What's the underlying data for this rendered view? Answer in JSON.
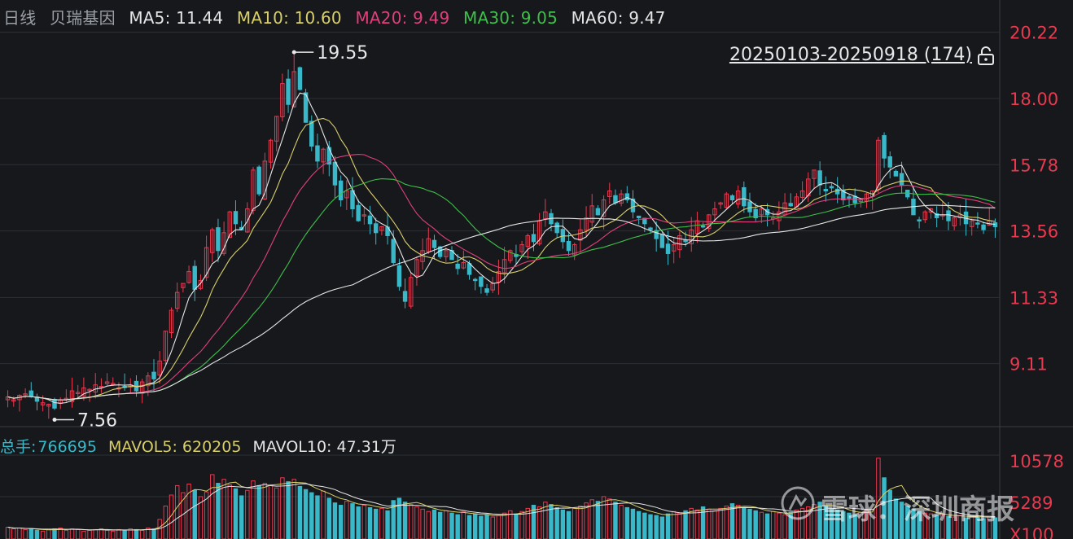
{
  "header": {
    "period": "日线",
    "stock_name": "贝瑞基因",
    "ma": [
      {
        "label": "MA5: 11.44",
        "color": "#e6e6e6"
      },
      {
        "label": "MA10: 10.60",
        "color": "#d8cf6a"
      },
      {
        "label": "MA20: 9.49",
        "color": "#e0407a"
      },
      {
        "label": "MA30: 9.05",
        "color": "#3fbf4a"
      },
      {
        "label": "MA60: 9.47",
        "color": "#e6e6e6"
      }
    ]
  },
  "range_label": "20250103-20250918 (174)",
  "lock_icon": "lock-open-icon",
  "annotations": {
    "high": "19.55",
    "low": "7.56"
  },
  "volume_header": {
    "total_label": "总手:",
    "total_value": "766695",
    "mavol5": "MAVOL5: 620205",
    "mavol10": "MAVOL10: 47.31万"
  },
  "price_axis": [
    "20.22",
    "18.00",
    "15.78",
    "13.56",
    "11.33",
    "9.11"
  ],
  "volume_axis": [
    "10578",
    "5289",
    "X100"
  ],
  "watermark": "雪球：深圳商报",
  "colors": {
    "up": "#e8394f",
    "down": "#38b8c8",
    "bg": "#16181c",
    "grid": "#2c2f36",
    "axis_text": "#e8394f"
  },
  "chart_data": {
    "type": "candlestick",
    "ylim": [
      7.0,
      21.3
    ],
    "count": 174,
    "closes": [
      8.0,
      7.9,
      8.05,
      8.1,
      8.0,
      7.85,
      7.8,
      7.75,
      7.62,
      7.9,
      7.95,
      8.2,
      8.15,
      8.3,
      8.25,
      8.4,
      8.35,
      8.5,
      8.45,
      8.3,
      8.35,
      8.4,
      8.2,
      8.5,
      8.7,
      8.6,
      9.2,
      10.2,
      10.9,
      11.5,
      11.8,
      12.2,
      11.6,
      11.9,
      13.0,
      13.6,
      12.9,
      13.5,
      14.2,
      13.8,
      13.6,
      14.3,
      15.6,
      14.8,
      15.9,
      16.6,
      17.4,
      18.5,
      17.8,
      18.9,
      18.3,
      17.2,
      16.4,
      15.9,
      16.3,
      15.8,
      15.1,
      14.6,
      14.9,
      14.3,
      13.9,
      14.1,
      13.8,
      13.5,
      13.7,
      13.4,
      12.5,
      11.7,
      11.2,
      12.0,
      12.6,
      12.9,
      13.3,
      13.0,
      12.7,
      12.9,
      12.6,
      12.3,
      12.5,
      12.1,
      11.9,
      11.7,
      11.5,
      11.8,
      12.2,
      12.6,
      12.9,
      12.7,
      13.1,
      13.4,
      13.2,
      13.9,
      14.2,
      13.8,
      13.5,
      13.2,
      12.9,
      13.1,
      13.6,
      14.0,
      14.4,
      14.1,
      14.6,
      14.9,
      14.5,
      14.8,
      14.6,
      14.2,
      14.0,
      13.8,
      13.6,
      13.3,
      13.0,
      12.8,
      13.1,
      13.4,
      13.2,
      13.6,
      13.9,
      13.7,
      14.1,
      14.3,
      14.5,
      14.8,
      14.6,
      14.9,
      14.4,
      14.2,
      14.0,
      14.3,
      14.1,
      14.0,
      14.2,
      14.5,
      14.4,
      14.7,
      14.9,
      15.3,
      15.6,
      15.1,
      14.9,
      15.0,
      14.8,
      14.6,
      14.7,
      14.5,
      14.6,
      14.8,
      14.9,
      16.6,
      16.0,
      15.7,
      15.4,
      15.1,
      14.7,
      14.1,
      13.9,
      14.2,
      14.3,
      14.0,
      14.1,
      13.9,
      14.0,
      14.1,
      13.8,
      13.9,
      13.8,
      13.6,
      13.9,
      13.7
    ],
    "high": {
      "value": 19.55,
      "index": 49
    },
    "low": {
      "value": 7.56,
      "index": 8
    },
    "ma_series": [
      "MA5",
      "MA10",
      "MA20",
      "MA30",
      "MA60"
    ],
    "volume_ylim": [
      0,
      10578
    ],
    "volumes": [
      1500,
      1300,
      1400,
      1200,
      1300,
      1100,
      1000,
      1200,
      1300,
      1400,
      1100,
      1300,
      1200,
      1000,
      1100,
      1200,
      1300,
      1100,
      1000,
      1200,
      1100,
      1300,
      1200,
      1100,
      1400,
      1300,
      2500,
      4200,
      5600,
      6800,
      5900,
      7000,
      6200,
      5400,
      6000,
      8200,
      7100,
      7600,
      6900,
      6400,
      5500,
      6200,
      7400,
      6800,
      7100,
      6900,
      6500,
      7800,
      7300,
      7600,
      6700,
      6300,
      5900,
      5500,
      6100,
      5200,
      4600,
      4300,
      4800,
      4500,
      4100,
      4300,
      4000,
      3800,
      3900,
      3600,
      4900,
      5200,
      4700,
      4400,
      4100,
      3800,
      3500,
      3700,
      3400,
      3600,
      3300,
      3100,
      3500,
      3000,
      3200,
      2900,
      3100,
      2800,
      3000,
      3300,
      3600,
      3200,
      3500,
      3900,
      4300,
      4100,
      4700,
      4400,
      4000,
      3700,
      3500,
      3900,
      4200,
      4600,
      5000,
      4800,
      5400,
      5100,
      4700,
      4300,
      4000,
      3800,
      3500,
      3300,
      3100,
      3000,
      2800,
      3200,
      3500,
      3300,
      3600,
      3900,
      3700,
      4100,
      3800,
      3600,
      3900,
      4200,
      4500,
      4300,
      4000,
      3800,
      3600,
      3400,
      3200,
      3500,
      3300,
      3100,
      3400,
      3700,
      3900,
      4100,
      4400,
      4700,
      4200,
      3900,
      3700,
      3500,
      3300,
      3100,
      3400,
      3600,
      3800,
      10300,
      7800,
      6200,
      5100,
      4700,
      4200,
      3800,
      3500,
      3300,
      3200,
      3000,
      3100,
      2900,
      2800,
      3000,
      2700,
      2900,
      2800,
      2600,
      2900,
      2700
    ]
  }
}
